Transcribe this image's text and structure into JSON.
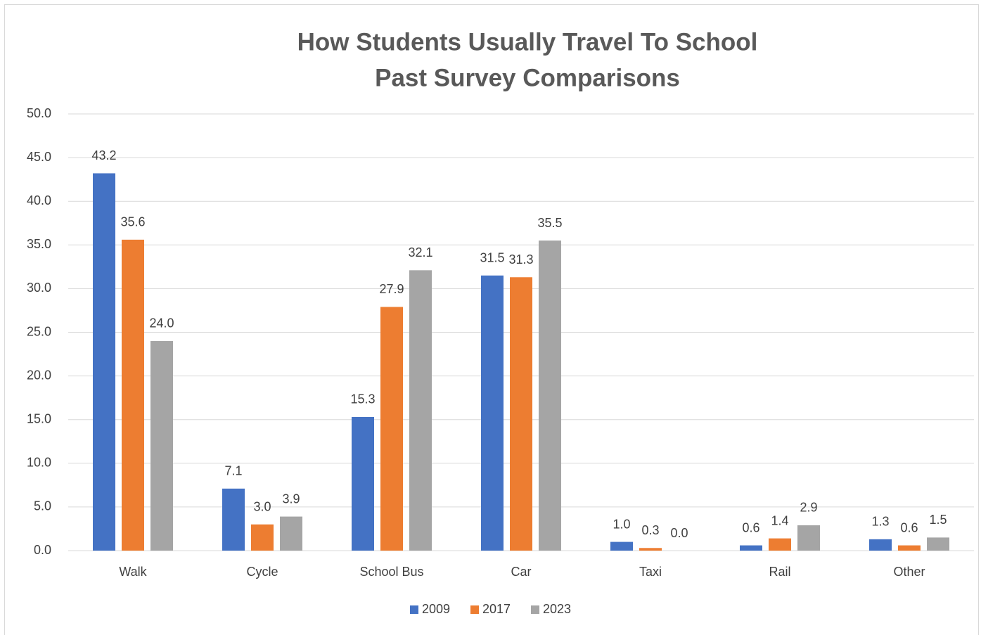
{
  "chart_data": {
    "type": "bar",
    "title": "How Students Usually Travel To School",
    "subtitle": "Past Survey Comparisons",
    "categories": [
      "Walk",
      "Cycle",
      "School Bus",
      "Car",
      "Taxi",
      "Rail",
      "Other"
    ],
    "series": [
      {
        "name": "2009",
        "color": "#4472c4",
        "values": [
          43.2,
          7.1,
          15.3,
          31.5,
          1.0,
          0.6,
          1.3
        ],
        "value_labels": [
          "43.2",
          "7.1",
          "15.3",
          "31.5",
          "1.0",
          "0.6",
          "1.3"
        ]
      },
      {
        "name": "2017",
        "color": "#ed7d31",
        "values": [
          35.6,
          3.0,
          27.9,
          31.3,
          0.3,
          1.4,
          0.6
        ],
        "value_labels": [
          "35.6",
          "3.0",
          "27.9",
          "31.3",
          "0.3",
          "1.4",
          "0.6"
        ]
      },
      {
        "name": "2023",
        "color": "#a5a5a5",
        "values": [
          24.0,
          3.9,
          32.1,
          35.5,
          0.0,
          2.9,
          1.5
        ],
        "value_labels": [
          "24.0",
          "3.9",
          "32.1",
          "35.5",
          "0.0",
          "2.9",
          "1.5"
        ]
      }
    ],
    "ylim": [
      0,
      50
    ],
    "yticks": [
      {
        "value": 0,
        "label": "0.0"
      },
      {
        "value": 5,
        "label": "5.0"
      },
      {
        "value": 10,
        "label": "10.0"
      },
      {
        "value": 15,
        "label": "15.0"
      },
      {
        "value": 20,
        "label": "20.0"
      },
      {
        "value": 25,
        "label": "25.0"
      },
      {
        "value": 30,
        "label": "30.0"
      },
      {
        "value": 35,
        "label": "35.0"
      },
      {
        "value": 40,
        "label": "40.0"
      },
      {
        "value": 45,
        "label": "45.0"
      },
      {
        "value": 50,
        "label": "50.0"
      }
    ],
    "grid": true,
    "legend": "bottom"
  }
}
